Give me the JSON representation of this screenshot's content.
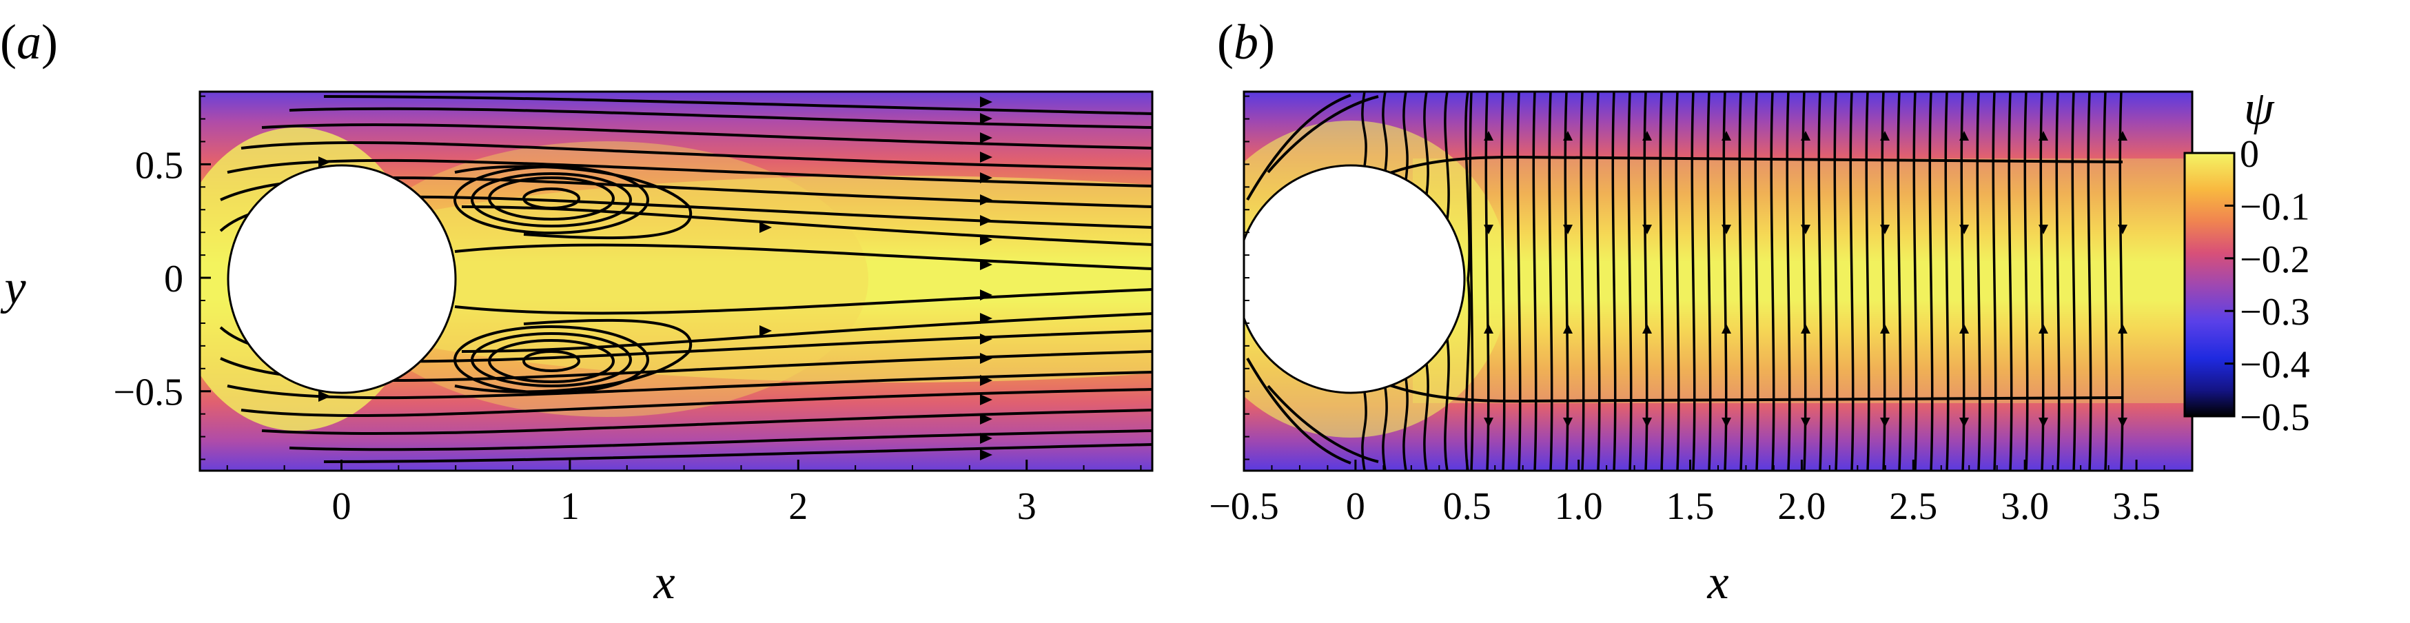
{
  "chart_data": [
    {
      "type": "heatmap",
      "panel_label": "(a)",
      "panel_letter": "a",
      "xlabel": "x",
      "ylabel": "y",
      "xlim": [
        -0.62,
        3.55
      ],
      "ylim": [
        -0.85,
        0.82
      ],
      "x_ticks": [
        0,
        1,
        2,
        3
      ],
      "x_tick_labels": [
        "0",
        "1",
        "2",
        "3"
      ],
      "y_ticks": [
        0.5,
        0,
        -0.5
      ],
      "y_tick_labels": [
        "0.5",
        "0",
        "−0.5"
      ],
      "obstacle": {
        "shape": "circle",
        "center": [
          0,
          0
        ],
        "radius": 0.5
      },
      "field": "psi",
      "features": [
        "streamlines",
        "recirculation vortices near (0.85, 0.35) and (0.85, -0.35)"
      ]
    },
    {
      "type": "heatmap",
      "panel_label": "(b)",
      "panel_letter": "b",
      "xlabel": "x",
      "ylabel": "",
      "xlim": [
        -0.5,
        3.75
      ],
      "ylim": [
        -0.85,
        0.82
      ],
      "x_ticks": [
        -0.5,
        0,
        0.5,
        1.0,
        1.5,
        2.0,
        2.5,
        3.0,
        3.5
      ],
      "x_tick_labels": [
        "−0.5",
        "0",
        "0.5",
        "1.0",
        "1.5",
        "2.0",
        "2.5",
        "3.0",
        "3.5"
      ],
      "obstacle": {
        "shape": "circle",
        "center": [
          0,
          0
        ],
        "radius": 0.5
      },
      "field": "psi",
      "features": [
        "vertical streamlines",
        "horizontal separating streamlines near y = ±0.58"
      ]
    }
  ],
  "colorbar": {
    "title": "ψ",
    "ticks": [
      0,
      -0.1,
      -0.2,
      -0.3,
      -0.4,
      -0.5
    ],
    "tick_labels": [
      "0",
      "−0.1",
      "−0.2",
      "−0.3",
      "−0.4",
      "−0.5"
    ],
    "range": [
      -0.5,
      0
    ],
    "colors": [
      "#000000",
      "#1a1ad0",
      "#5a3ce8",
      "#9a40c0",
      "#d8507a",
      "#f08650",
      "#f8b840",
      "#f0f060"
    ]
  }
}
